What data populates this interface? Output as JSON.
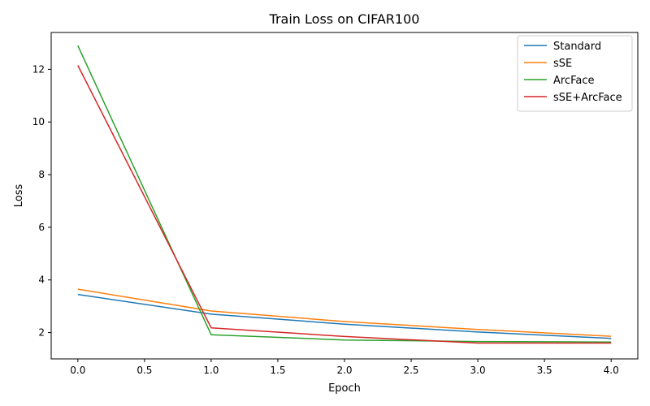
{
  "chart_data": {
    "type": "line",
    "title": "Train Loss on CIFAR100",
    "xlabel": "Epoch",
    "ylabel": "Loss",
    "x": [
      0,
      1,
      2,
      3,
      4
    ],
    "xlim": [
      -0.2,
      4.2
    ],
    "ylim": [
      1.0,
      13.4
    ],
    "xticks": [
      0.0,
      0.5,
      1.0,
      1.5,
      2.0,
      2.5,
      3.0,
      3.5,
      4.0
    ],
    "xtick_labels": [
      "0.0",
      "0.5",
      "1.0",
      "1.5",
      "2.0",
      "2.5",
      "3.0",
      "3.5",
      "4.0"
    ],
    "yticks": [
      2,
      4,
      6,
      8,
      10,
      12
    ],
    "ytick_labels": [
      "2",
      "4",
      "6",
      "8",
      "10",
      "12"
    ],
    "grid": false,
    "legend_position": "top-right",
    "series": [
      {
        "name": "Standard",
        "color": "#1f77b4",
        "values": [
          3.45,
          2.7,
          2.32,
          2.02,
          1.78
        ]
      },
      {
        "name": "sSE",
        "color": "#ff7f0e",
        "values": [
          3.65,
          2.82,
          2.42,
          2.12,
          1.86
        ]
      },
      {
        "name": "ArcFace",
        "color": "#2ca02c",
        "values": [
          12.9,
          1.92,
          1.72,
          1.66,
          1.64
        ]
      },
      {
        "name": "sSE+ArcFace",
        "color": "#d62728",
        "values": [
          12.15,
          2.18,
          1.85,
          1.6,
          1.6
        ]
      }
    ]
  }
}
